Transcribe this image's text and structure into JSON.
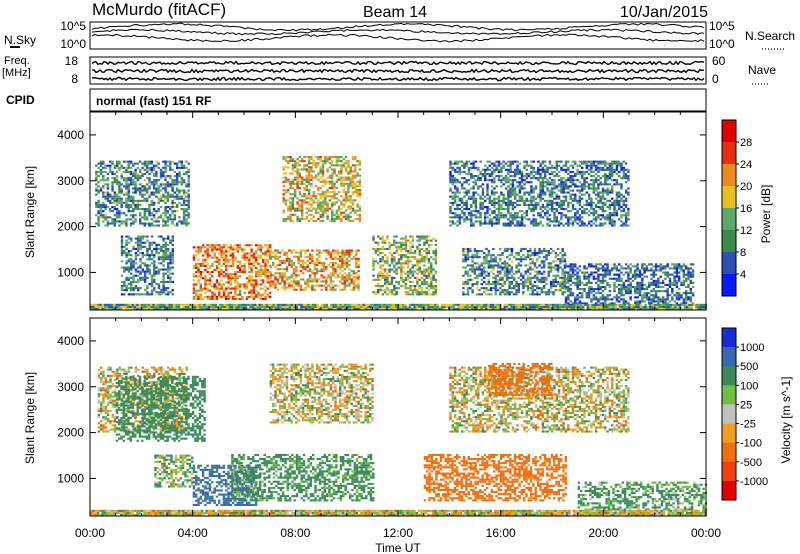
{
  "header": {
    "station": "McMurdo (fitACF)",
    "beam": "Beam 14",
    "date": "10/Jan/2015"
  },
  "noise_panel": {
    "left_label": "N.Sky",
    "right_label": "N.Search",
    "left_ticks": [
      "10^5",
      "10^0"
    ],
    "right_ticks": [
      "10^5",
      "10^0"
    ]
  },
  "freq_panel": {
    "left_label_top": "Freq.",
    "left_label_bottom": "[MHz]",
    "right_label": "Nave",
    "left_ticks": [
      "18",
      "8"
    ],
    "right_ticks": [
      "60",
      "0"
    ]
  },
  "cpid_panel": {
    "label": "CPID",
    "text": "normal (fast) 151 RF"
  },
  "chart_data": [
    {
      "type": "heatmap",
      "parameter": "Power",
      "ylabel": "Slant Range [km]",
      "xlabel": "",
      "ylim": [
        180,
        4500
      ],
      "yticks": [
        "1000",
        "2000",
        "3000",
        "4000"
      ],
      "colorbar": {
        "label": "Power [dB]",
        "ticks": [
          "4",
          "8",
          "12",
          "16",
          "20",
          "24",
          "28"
        ],
        "colors": [
          "#0a1aff",
          "#2e4fb8",
          "#3a8a4a",
          "#5aa86a",
          "#e8c020",
          "#f08820",
          "#e83010",
          "#e00000"
        ]
      },
      "echo_regions": [
        {
          "t0": 0.2,
          "t1": 3.8,
          "r0": 2000,
          "r1": 3400,
          "power_db": 10
        },
        {
          "t0": 1.2,
          "t1": 3.2,
          "r0": 500,
          "r1": 1800,
          "power_db": 9
        },
        {
          "t0": 4.0,
          "t1": 7.0,
          "r0": 400,
          "r1": 1600,
          "power_db": 22
        },
        {
          "t0": 7.0,
          "t1": 10.5,
          "r0": 600,
          "r1": 1500,
          "power_db": 20
        },
        {
          "t0": 7.5,
          "t1": 10.5,
          "r0": 2100,
          "r1": 3500,
          "power_db": 18
        },
        {
          "t0": 11.0,
          "t1": 13.5,
          "r0": 500,
          "r1": 1800,
          "power_db": 14
        },
        {
          "t0": 14.0,
          "t1": 21.0,
          "r0": 2000,
          "r1": 3400,
          "power_db": 9
        },
        {
          "t0": 14.5,
          "t1": 18.5,
          "r0": 500,
          "r1": 1500,
          "power_db": 10
        },
        {
          "t0": 18.5,
          "t1": 23.5,
          "r0": 300,
          "r1": 1200,
          "power_db": 8
        },
        {
          "t0": 0.0,
          "t1": 24.0,
          "r0": 180,
          "r1": 300,
          "power_db": 13
        }
      ]
    },
    {
      "type": "heatmap",
      "parameter": "Velocity",
      "ylabel": "Slant Range [km]",
      "xlabel": "Time UT",
      "ylim": [
        180,
        4500
      ],
      "yticks": [
        "1000",
        "2000",
        "3000",
        "4000"
      ],
      "xticks": [
        "00:00",
        "04:00",
        "08:00",
        "12:00",
        "16:00",
        "20:00",
        "00:00"
      ],
      "colorbar": {
        "label": "Velocity [m s^-1]",
        "ticks": [
          "1000",
          "500",
          "100",
          "25",
          "-25",
          "-100",
          "-500",
          "-1000"
        ],
        "colors": [
          "#1a2ad8",
          "#3a68b0",
          "#3a8a5a",
          "#70c040",
          "#c0c0c0",
          "#f0a020",
          "#f07010",
          "#f04010",
          "#e00000"
        ]
      },
      "echo_regions": [
        {
          "t0": 0.3,
          "t1": 3.8,
          "r0": 2000,
          "r1": 3400,
          "velocity": 0
        },
        {
          "t0": 1.0,
          "t1": 4.5,
          "r0": 1800,
          "r1": 3200,
          "velocity": 300
        },
        {
          "t0": 2.5,
          "t1": 4.0,
          "r0": 800,
          "r1": 1500,
          "velocity": 80
        },
        {
          "t0": 4.0,
          "t1": 6.5,
          "r0": 400,
          "r1": 1300,
          "velocity": 600
        },
        {
          "t0": 5.5,
          "t1": 11.0,
          "r0": 500,
          "r1": 1500,
          "velocity": 200
        },
        {
          "t0": 7.0,
          "t1": 11.0,
          "r0": 2200,
          "r1": 3500,
          "velocity": 0
        },
        {
          "t0": 14.0,
          "t1": 21.0,
          "r0": 2000,
          "r1": 3400,
          "velocity": 0
        },
        {
          "t0": 15.5,
          "t1": 18.0,
          "r0": 2800,
          "r1": 3500,
          "velocity": -300
        },
        {
          "t0": 13.0,
          "t1": 18.5,
          "r0": 500,
          "r1": 1500,
          "velocity": -250
        },
        {
          "t0": 19.0,
          "t1": 24.0,
          "r0": 300,
          "r1": 900,
          "velocity": 150
        },
        {
          "t0": 0.0,
          "t1": 24.0,
          "r0": 180,
          "r1": 300,
          "velocity": 0
        }
      ]
    }
  ]
}
